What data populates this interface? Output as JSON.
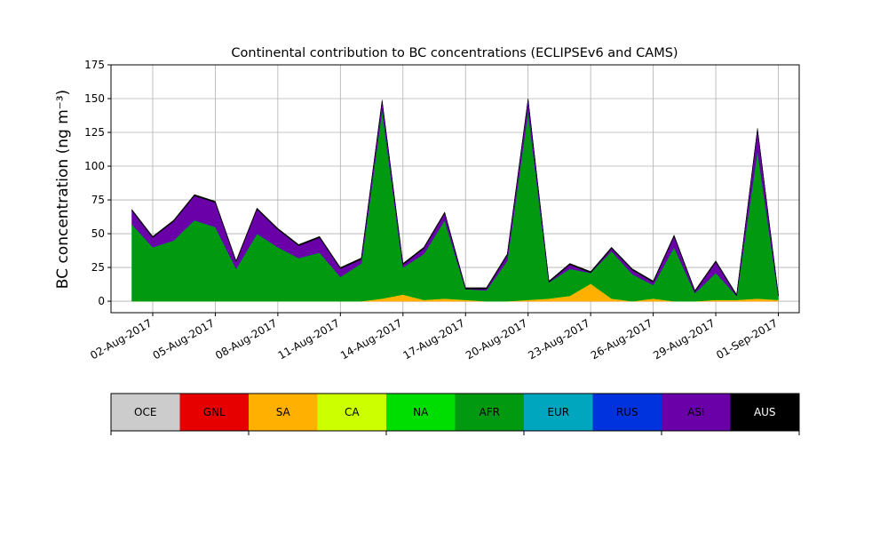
{
  "chart_data": {
    "type": "stacked_area",
    "title": "Continental contribution to BC concentrations (ECLIPSEv6 and CAMS)",
    "ylabel": "BC concentration (ng m⁻³)",
    "x": [
      "2017-08-01",
      "2017-08-02",
      "2017-08-03",
      "2017-08-04",
      "2017-08-05",
      "2017-08-06",
      "2017-08-07",
      "2017-08-08",
      "2017-08-09",
      "2017-08-10",
      "2017-08-11",
      "2017-08-12",
      "2017-08-13",
      "2017-08-14",
      "2017-08-15",
      "2017-08-16",
      "2017-08-17",
      "2017-08-18",
      "2017-08-19",
      "2017-08-20",
      "2017-08-21",
      "2017-08-22",
      "2017-08-23",
      "2017-08-24",
      "2017-08-25",
      "2017-08-26",
      "2017-08-27",
      "2017-08-28",
      "2017-08-29",
      "2017-08-30",
      "2017-08-31",
      "2017-09-01"
    ],
    "series": [
      {
        "name": "OCE",
        "color": "#cccccc",
        "values": [
          0,
          0,
          0,
          0,
          0,
          0,
          0,
          0,
          0,
          0,
          0,
          0,
          0,
          0,
          0,
          0,
          0,
          0,
          0,
          0,
          0,
          0,
          0,
          0,
          0,
          0,
          0,
          0,
          0,
          0,
          0,
          0
        ]
      },
      {
        "name": "GNL",
        "color": "#e60000",
        "values": [
          0,
          0,
          0,
          0,
          0,
          0,
          0,
          0,
          0,
          0,
          0,
          0,
          0,
          0,
          0,
          0,
          0,
          0,
          0,
          0,
          0,
          0,
          0,
          0,
          0,
          0,
          0,
          0,
          0,
          0,
          0,
          0
        ]
      },
      {
        "name": "SA",
        "color": "#ffb000",
        "values": [
          0,
          0,
          0,
          0,
          0,
          0,
          0,
          0,
          0,
          0,
          0,
          0,
          2,
          5,
          1,
          2,
          1,
          0,
          0,
          1,
          2,
          4,
          13,
          2,
          0,
          2,
          0,
          0,
          1,
          1,
          2,
          1
        ]
      },
      {
        "name": "CA",
        "color": "#ccff00",
        "values": [
          0,
          0,
          0,
          0,
          0,
          0,
          0,
          0,
          0,
          0,
          0,
          0,
          0,
          0,
          0,
          0,
          0,
          0,
          0,
          0,
          0,
          0,
          0,
          0,
          0,
          0,
          0,
          0,
          0,
          0,
          0,
          0
        ]
      },
      {
        "name": "NA",
        "color": "#00dd00",
        "values": [
          0,
          0,
          0,
          0,
          0,
          0,
          0,
          0,
          0,
          0,
          0,
          0,
          0,
          0,
          0,
          0,
          0,
          0,
          0,
          0,
          0,
          0,
          0,
          0,
          0,
          0,
          0,
          0,
          0,
          0,
          0,
          0
        ]
      },
      {
        "name": "AFR",
        "color": "#009910",
        "values": [
          57,
          40,
          45,
          60,
          55,
          24,
          50,
          40,
          32,
          36,
          18,
          28,
          140,
          20,
          34,
          58,
          8,
          8,
          30,
          140,
          12,
          20,
          8,
          35,
          20,
          10,
          40,
          6,
          20,
          3,
          110,
          3
        ]
      },
      {
        "name": "EUR",
        "color": "#00a5be",
        "values": [
          0,
          0,
          0,
          0,
          0,
          0,
          0,
          0,
          0,
          0,
          0,
          0,
          0,
          0,
          0,
          0,
          0,
          0,
          0,
          0,
          0,
          0,
          0,
          0,
          0,
          0,
          0,
          0,
          0,
          0,
          0,
          0
        ]
      },
      {
        "name": "RUS",
        "color": "#0033dd",
        "values": [
          0,
          0,
          0,
          0,
          0,
          0,
          0,
          0,
          0,
          0,
          0,
          0,
          0,
          0,
          0,
          0,
          0,
          0,
          0,
          0,
          0,
          0,
          0,
          0,
          0,
          0,
          0,
          0,
          0,
          0,
          0,
          0
        ]
      },
      {
        "name": "ASI",
        "color": "#6a00a8",
        "values": [
          10,
          7,
          14,
          18,
          18,
          5,
          18,
          13,
          9,
          11,
          6,
          3,
          6,
          2,
          4,
          5,
          0,
          1,
          4,
          8,
          0,
          3,
          0,
          2,
          3,
          2,
          8,
          1,
          8,
          0,
          15,
          0
        ]
      },
      {
        "name": "AUS",
        "color": "#000000",
        "values": [
          1,
          1,
          1,
          1,
          1,
          1,
          1,
          1,
          1,
          1,
          1,
          1,
          1,
          1,
          1,
          1,
          1,
          1,
          1,
          1,
          1,
          1,
          1,
          1,
          1,
          1,
          1,
          1,
          1,
          1,
          1,
          1
        ]
      }
    ],
    "xlim": [
      "2017-07-31",
      "2017-09-02"
    ],
    "xticks": [
      {
        "value": "2017-08-02",
        "label": "02-Aug-2017"
      },
      {
        "value": "2017-08-05",
        "label": "05-Aug-2017"
      },
      {
        "value": "2017-08-08",
        "label": "08-Aug-2017"
      },
      {
        "value": "2017-08-11",
        "label": "11-Aug-2017"
      },
      {
        "value": "2017-08-14",
        "label": "14-Aug-2017"
      },
      {
        "value": "2017-08-17",
        "label": "17-Aug-2017"
      },
      {
        "value": "2017-08-20",
        "label": "20-Aug-2017"
      },
      {
        "value": "2017-08-23",
        "label": "23-Aug-2017"
      },
      {
        "value": "2017-08-26",
        "label": "26-Aug-2017"
      },
      {
        "value": "2017-08-29",
        "label": "29-Aug-2017"
      },
      {
        "value": "2017-09-01",
        "label": "01-Sep-2017"
      }
    ],
    "ylim": [
      -8.5,
      175
    ],
    "yticks": [
      0,
      25,
      50,
      75,
      100,
      125,
      150,
      175
    ],
    "grid": true
  }
}
